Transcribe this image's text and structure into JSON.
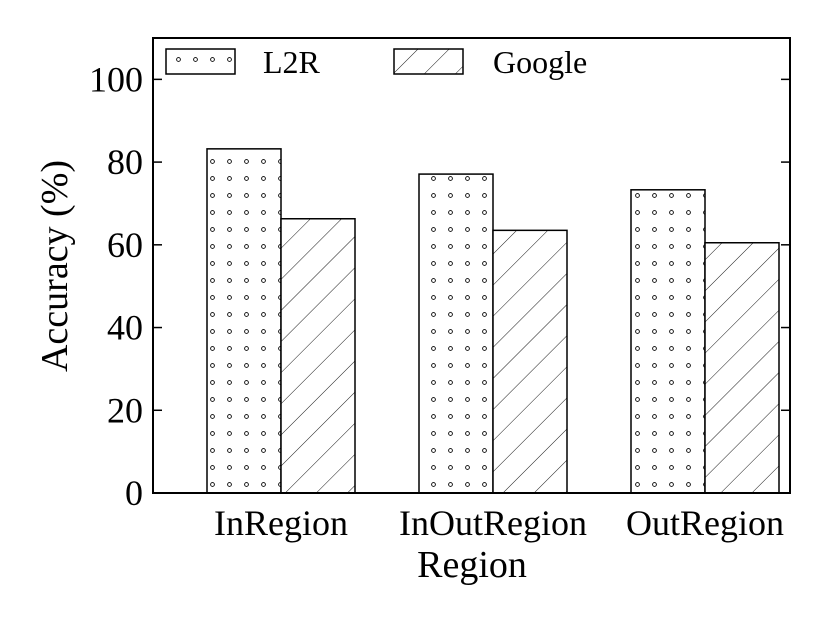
{
  "chart_data": {
    "type": "bar",
    "title": "",
    "xlabel": "Region",
    "ylabel": "Accuracy (%)",
    "ylim": [
      0,
      110
    ],
    "yticks": [
      0,
      20,
      40,
      60,
      80,
      100
    ],
    "categories": [
      "InRegion",
      "InOutRegion",
      "OutRegion"
    ],
    "series": [
      {
        "name": "L2R",
        "values": [
          83.2,
          77.1,
          73.3
        ],
        "pattern": "dots"
      },
      {
        "name": "Google",
        "values": [
          66.3,
          63.5,
          60.5
        ],
        "pattern": "diagonal-hatch"
      }
    ],
    "grid": false,
    "legend_position": "top-left"
  }
}
